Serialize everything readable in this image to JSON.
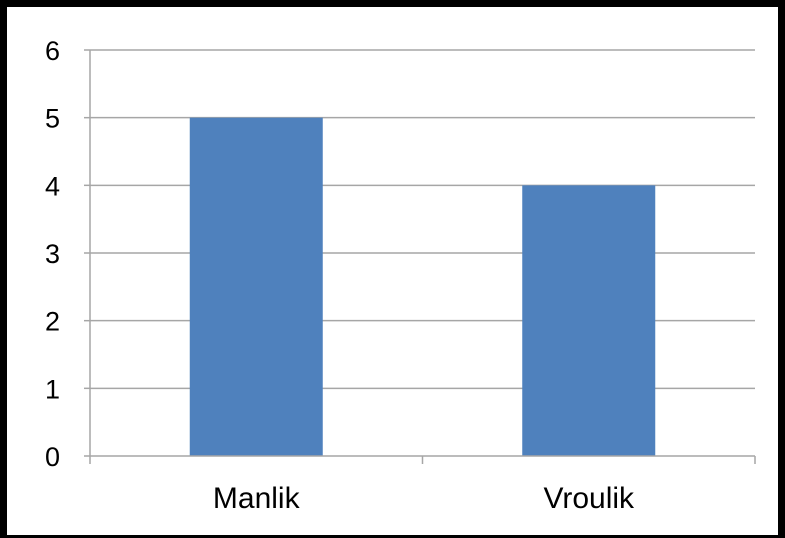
{
  "chart_data": {
    "type": "bar",
    "title": "",
    "xlabel": "",
    "ylabel": "",
    "categories": [
      "Manlik",
      "Vroulik"
    ],
    "values": [
      5,
      4
    ],
    "ylim": [
      0,
      6
    ],
    "yticks": [
      0,
      1,
      2,
      3,
      4,
      5,
      6
    ],
    "grid": true,
    "legend": "none",
    "bar_color": "#4f81bd",
    "grid_color": "#a6a6a6"
  }
}
